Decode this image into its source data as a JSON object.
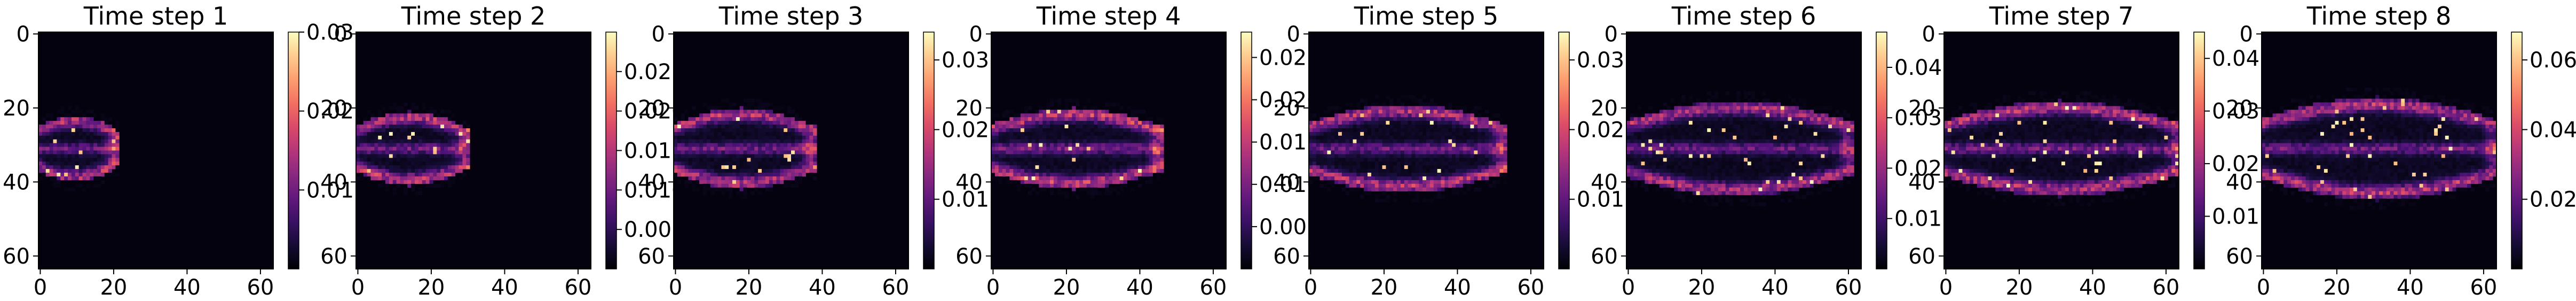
{
  "chart_data": [
    {
      "type": "heatmap",
      "title": "Time step 1",
      "x_ticks": [
        0,
        20,
        40,
        60
      ],
      "y_ticks": [
        0,
        20,
        40,
        60
      ],
      "xlim": [
        0,
        63
      ],
      "ylim": [
        63,
        0
      ],
      "colormap": "magma",
      "colorbar": {
        "min": 0,
        "max": 0.03,
        "ticks": [
          0.01,
          0.02,
          0.03
        ],
        "tick_labels": [
          "0.01",
          "0.02",
          "0.03"
        ]
      },
      "plume": {
        "front_x": 20,
        "center_y": 31,
        "half_width_y": 9,
        "intensity": 0.85
      }
    },
    {
      "type": "heatmap",
      "title": "Time step 2",
      "x_ticks": [
        0,
        20,
        40,
        60
      ],
      "y_ticks": [
        0,
        20,
        40,
        60
      ],
      "xlim": [
        0,
        63
      ],
      "ylim": [
        63,
        0
      ],
      "colormap": "magma",
      "colorbar": {
        "min": 0,
        "max": 0.03,
        "ticks": [
          0.005,
          0.01,
          0.015,
          0.02,
          0.025
        ],
        "tick_labels": [
          "0.005",
          "0.010",
          "0.015",
          "0.020",
          "0.025"
        ]
      },
      "plume": {
        "front_x": 29,
        "center_y": 31,
        "half_width_y": 10,
        "intensity": 0.9
      }
    },
    {
      "type": "heatmap",
      "title": "Time step 3",
      "x_ticks": [
        0,
        20,
        40,
        60
      ],
      "y_ticks": [
        0,
        20,
        40,
        60
      ],
      "xlim": [
        0,
        63
      ],
      "ylim": [
        63,
        0
      ],
      "colormap": "magma",
      "colorbar": {
        "min": 0,
        "max": 0.034,
        "ticks": [
          0.01,
          0.02,
          0.03
        ],
        "tick_labels": [
          "0.01",
          "0.02",
          "0.03"
        ]
      },
      "plume": {
        "front_x": 37,
        "center_y": 31,
        "half_width_y": 11,
        "intensity": 0.9
      }
    },
    {
      "type": "heatmap",
      "title": "Time step 4",
      "x_ticks": [
        0,
        20,
        40,
        60
      ],
      "y_ticks": [
        0,
        20,
        40,
        60
      ],
      "xlim": [
        0,
        63
      ],
      "ylim": [
        63,
        0
      ],
      "colormap": "magma",
      "colorbar": {
        "min": 0,
        "max": 0.028,
        "ticks": [
          0.005,
          0.01,
          0.015,
          0.02,
          0.025
        ],
        "tick_labels": [
          "0.005",
          "0.010",
          "0.015",
          "0.020",
          "0.025"
        ]
      },
      "plume": {
        "front_x": 45,
        "center_y": 31,
        "half_width_y": 11,
        "intensity": 0.95
      }
    },
    {
      "type": "heatmap",
      "title": "Time step 5",
      "x_ticks": [
        0,
        20,
        40,
        60
      ],
      "y_ticks": [
        0,
        20,
        40,
        60
      ],
      "xlim": [
        0,
        63
      ],
      "ylim": [
        63,
        0
      ],
      "colormap": "magma",
      "colorbar": {
        "min": 0,
        "max": 0.034,
        "ticks": [
          0.01,
          0.02,
          0.03
        ],
        "tick_labels": [
          "0.01",
          "0.02",
          "0.03"
        ]
      },
      "plume": {
        "front_x": 52,
        "center_y": 31,
        "half_width_y": 12,
        "intensity": 0.9
      }
    },
    {
      "type": "heatmap",
      "title": "Time step 6",
      "x_ticks": [
        0,
        20,
        40,
        60
      ],
      "y_ticks": [
        0,
        20,
        40,
        60
      ],
      "xlim": [
        0,
        63
      ],
      "ylim": [
        63,
        0
      ],
      "colormap": "magma",
      "colorbar": {
        "min": 0,
        "max": 0.047,
        "ticks": [
          0.01,
          0.02,
          0.03,
          0.04
        ],
        "tick_labels": [
          "0.01",
          "0.02",
          "0.03",
          "0.04"
        ]
      },
      "plume": {
        "front_x": 60,
        "center_y": 31,
        "half_width_y": 13,
        "intensity": 0.85
      }
    },
    {
      "type": "heatmap",
      "title": "Time step 7",
      "x_ticks": [
        0,
        20,
        40,
        60
      ],
      "y_ticks": [
        0,
        20,
        40,
        60
      ],
      "xlim": [
        0,
        63
      ],
      "ylim": [
        63,
        0
      ],
      "colormap": "magma",
      "colorbar": {
        "min": 0,
        "max": 0.045,
        "ticks": [
          0.01,
          0.02,
          0.03,
          0.04
        ],
        "tick_labels": [
          "0.01",
          "0.02",
          "0.03",
          "0.04"
        ]
      },
      "plume": {
        "front_x": 63,
        "center_y": 31,
        "half_width_y": 13,
        "intensity": 0.9
      }
    },
    {
      "type": "heatmap",
      "title": "Time step 8",
      "x_ticks": [
        0,
        20,
        40,
        60
      ],
      "y_ticks": [
        0,
        20,
        40,
        60
      ],
      "xlim": [
        0,
        63
      ],
      "ylim": [
        63,
        0
      ],
      "colormap": "magma",
      "colorbar": {
        "min": 0,
        "max": 0.068,
        "ticks": [
          0.02,
          0.04,
          0.06
        ],
        "tick_labels": [
          "0.02",
          "0.04",
          "0.06"
        ]
      },
      "plume": {
        "front_x": 63,
        "center_y": 31,
        "half_width_y": 14,
        "intensity": 0.9
      }
    }
  ]
}
